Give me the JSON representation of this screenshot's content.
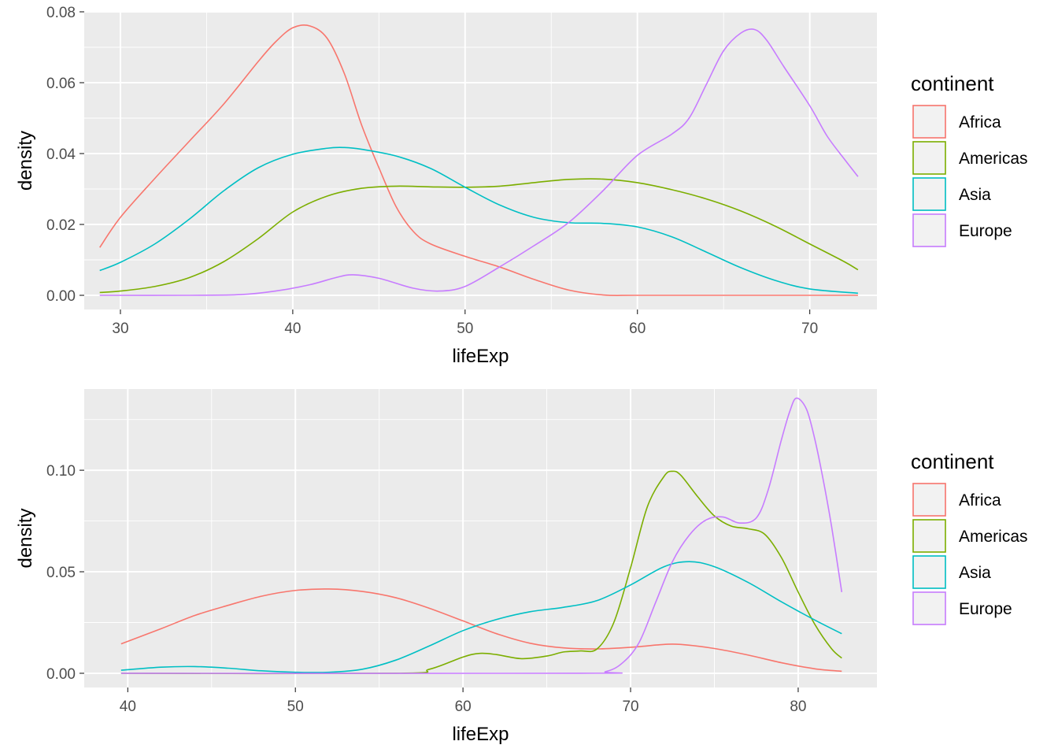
{
  "chart_data": [
    {
      "type": "line",
      "subtype": "density",
      "xlabel": "lifeExp",
      "ylabel": "density",
      "xlim": [
        27.9,
        73.9
      ],
      "ylim": [
        -0.004,
        0.08
      ],
      "x_ticks": [
        30,
        40,
        50,
        60,
        70
      ],
      "x_tick_labels": [
        "30",
        "40",
        "50",
        "60",
        "70"
      ],
      "y_ticks": [
        0,
        0.02,
        0.04,
        0.06,
        0.08
      ],
      "y_tick_labels": [
        "0.00",
        "0.02",
        "0.04",
        "0.06",
        "0.08"
      ],
      "grid": true,
      "legend_title": "continent",
      "legend_position": "right",
      "series": [
        {
          "name": "Africa",
          "color": "#F8766D",
          "points": [
            [
              28.8,
              0.0135
            ],
            [
              30,
              0.022
            ],
            [
              32,
              0.033
            ],
            [
              34,
              0.0435
            ],
            [
              36,
              0.054
            ],
            [
              38,
              0.066
            ],
            [
              39,
              0.0715
            ],
            [
              40,
              0.0755
            ],
            [
              41,
              0.076
            ],
            [
              42,
              0.0725
            ],
            [
              43,
              0.0625
            ],
            [
              44,
              0.048
            ],
            [
              45,
              0.036
            ],
            [
              46,
              0.025
            ],
            [
              47,
              0.018
            ],
            [
              48,
              0.0145
            ],
            [
              50,
              0.011
            ],
            [
              52,
              0.008
            ],
            [
              54,
              0.0045
            ],
            [
              56,
              0.0015
            ],
            [
              58,
              0.0001
            ],
            [
              60,
              0.0
            ],
            [
              65,
              0.0
            ],
            [
              72.8,
              0.0
            ]
          ]
        },
        {
          "name": "Americas",
          "color": "#7CAE00",
          "points": [
            [
              28.8,
              0.0008
            ],
            [
              30,
              0.0012
            ],
            [
              32,
              0.0025
            ],
            [
              34,
              0.005
            ],
            [
              36,
              0.0095
            ],
            [
              38,
              0.016
            ],
            [
              40,
              0.0235
            ],
            [
              42,
              0.028
            ],
            [
              44,
              0.0302
            ],
            [
              46,
              0.0308
            ],
            [
              48,
              0.0306
            ],
            [
              50,
              0.0305
            ],
            [
              52,
              0.0308
            ],
            [
              54,
              0.0318
            ],
            [
              56,
              0.0327
            ],
            [
              58,
              0.0328
            ],
            [
              60,
              0.0318
            ],
            [
              62,
              0.0298
            ],
            [
              64,
              0.0272
            ],
            [
              66,
              0.0238
            ],
            [
              68,
              0.0195
            ],
            [
              70,
              0.0145
            ],
            [
              72,
              0.0095
            ],
            [
              72.8,
              0.0072
            ]
          ]
        },
        {
          "name": "Asia",
          "color": "#00BFC4",
          "points": [
            [
              28.8,
              0.007
            ],
            [
              30,
              0.0093
            ],
            [
              32,
              0.0145
            ],
            [
              34,
              0.0215
            ],
            [
              36,
              0.0295
            ],
            [
              38,
              0.036
            ],
            [
              40,
              0.0398
            ],
            [
              42,
              0.0415
            ],
            [
              43,
              0.0417
            ],
            [
              44,
              0.0412
            ],
            [
              46,
              0.0393
            ],
            [
              48,
              0.0358
            ],
            [
              50,
              0.0305
            ],
            [
              52,
              0.0255
            ],
            [
              54,
              0.022
            ],
            [
              56,
              0.0205
            ],
            [
              58,
              0.0203
            ],
            [
              60,
              0.0193
            ],
            [
              62,
              0.0165
            ],
            [
              64,
              0.0122
            ],
            [
              66,
              0.0078
            ],
            [
              68,
              0.0042
            ],
            [
              70,
              0.0018
            ],
            [
              72.8,
              0.0006
            ]
          ]
        },
        {
          "name": "Europe",
          "color": "#C77CFF",
          "points": [
            [
              28.8,
              0.0
            ],
            [
              34,
              0.0
            ],
            [
              37,
              0.0002
            ],
            [
              39,
              0.0012
            ],
            [
              41,
              0.003
            ],
            [
              42.5,
              0.005
            ],
            [
              43.5,
              0.0058
            ],
            [
              45,
              0.0048
            ],
            [
              47,
              0.002
            ],
            [
              48.5,
              0.0012
            ],
            [
              50,
              0.0025
            ],
            [
              52,
              0.008
            ],
            [
              54,
              0.014
            ],
            [
              56,
              0.0205
            ],
            [
              58,
              0.0295
            ],
            [
              60,
              0.0395
            ],
            [
              62,
              0.0455
            ],
            [
              63,
              0.05
            ],
            [
              64,
              0.0595
            ],
            [
              65,
              0.069
            ],
            [
              66,
              0.074
            ],
            [
              66.8,
              0.075
            ],
            [
              67.5,
              0.072
            ],
            [
              68.5,
              0.0645
            ],
            [
              70,
              0.0535
            ],
            [
              71,
              0.045
            ],
            [
              72,
              0.0385
            ],
            [
              72.8,
              0.0335
            ]
          ]
        }
      ]
    },
    {
      "type": "line",
      "subtype": "density",
      "xlabel": "lifeExp",
      "ylabel": "density",
      "xlim": [
        37.4,
        84.7
      ],
      "ylim": [
        -0.007,
        0.14
      ],
      "x_ticks": [
        40,
        50,
        60,
        70,
        80
      ],
      "x_tick_labels": [
        "40",
        "50",
        "60",
        "70",
        "80"
      ],
      "y_ticks": [
        0,
        0.05,
        0.1
      ],
      "y_tick_labels": [
        "0.00",
        "0.05",
        "0.10"
      ],
      "grid": true,
      "legend_title": "continent",
      "legend_position": "right",
      "series": [
        {
          "name": "Africa",
          "color": "#F8766D",
          "points": [
            [
              39.6,
              0.0145
            ],
            [
              42,
              0.022
            ],
            [
              44,
              0.0285
            ],
            [
              46,
              0.0335
            ],
            [
              48,
              0.038
            ],
            [
              50,
              0.0408
            ],
            [
              52,
              0.0415
            ],
            [
              54,
              0.0403
            ],
            [
              56,
              0.0372
            ],
            [
              58,
              0.032
            ],
            [
              60,
              0.0258
            ],
            [
              62,
              0.0195
            ],
            [
              64,
              0.0148
            ],
            [
              66,
              0.0125
            ],
            [
              68,
              0.012
            ],
            [
              70,
              0.0128
            ],
            [
              72,
              0.0142
            ],
            [
              73,
              0.0142
            ],
            [
              75,
              0.0122
            ],
            [
              77,
              0.009
            ],
            [
              79,
              0.0052
            ],
            [
              81,
              0.0022
            ],
            [
              82.6,
              0.001
            ]
          ]
        },
        {
          "name": "Americas",
          "color": "#7CAE00",
          "points": [
            [
              39.6,
              0.0
            ],
            [
              56,
              0.0
            ],
            [
              58,
              0.002
            ],
            [
              60,
              0.008
            ],
            [
              61,
              0.0098
            ],
            [
              62,
              0.0092
            ],
            [
              63.5,
              0.0072
            ],
            [
              65,
              0.0085
            ],
            [
              66,
              0.0105
            ],
            [
              67,
              0.011
            ],
            [
              68,
              0.012
            ],
            [
              69,
              0.025
            ],
            [
              70,
              0.052
            ],
            [
              71,
              0.082
            ],
            [
              72,
              0.097
            ],
            [
              72.5,
              0.0995
            ],
            [
              73,
              0.0975
            ],
            [
              74,
              0.087
            ],
            [
              75,
              0.0775
            ],
            [
              76,
              0.0725
            ],
            [
              77,
              0.0712
            ],
            [
              78,
              0.0685
            ],
            [
              79,
              0.057
            ],
            [
              80,
              0.04
            ],
            [
              81,
              0.024
            ],
            [
              82,
              0.012
            ],
            [
              82.6,
              0.0075
            ]
          ]
        },
        {
          "name": "Asia",
          "color": "#00BFC4",
          "points": [
            [
              39.6,
              0.0015
            ],
            [
              42,
              0.003
            ],
            [
              44,
              0.0033
            ],
            [
              46,
              0.0025
            ],
            [
              48,
              0.0012
            ],
            [
              50,
              0.0005
            ],
            [
              52,
              0.0005
            ],
            [
              54,
              0.002
            ],
            [
              56,
              0.0065
            ],
            [
              58,
              0.0135
            ],
            [
              60,
              0.021
            ],
            [
              62,
              0.0265
            ],
            [
              64,
              0.0303
            ],
            [
              66,
              0.0325
            ],
            [
              68,
              0.0358
            ],
            [
              70,
              0.0435
            ],
            [
              72,
              0.0525
            ],
            [
              73.5,
              0.055
            ],
            [
              75,
              0.0525
            ],
            [
              77,
              0.0448
            ],
            [
              79,
              0.0352
            ],
            [
              81,
              0.0262
            ],
            [
              82.6,
              0.0195
            ]
          ]
        },
        {
          "name": "Europe",
          "color": "#C77CFF",
          "points": [
            [
              39.6,
              0.0
            ],
            [
              67,
              0.0
            ],
            [
              68.5,
              0.0008
            ],
            [
              69.5,
              0.005
            ],
            [
              70.5,
              0.015
            ],
            [
              71.5,
              0.035
            ],
            [
              72.5,
              0.055
            ],
            [
              73.5,
              0.068
            ],
            [
              74.5,
              0.0755
            ],
            [
              75.5,
              0.077
            ],
            [
              76.5,
              0.074
            ],
            [
              77.5,
              0.0765
            ],
            [
              78.2,
              0.09
            ],
            [
              79,
              0.115
            ],
            [
              79.5,
              0.129
            ],
            [
              79.9,
              0.1355
            ],
            [
              80.5,
              0.13
            ],
            [
              81,
              0.115
            ],
            [
              81.5,
              0.095
            ],
            [
              82,
              0.072
            ],
            [
              82.6,
              0.04
            ]
          ]
        }
      ]
    }
  ]
}
